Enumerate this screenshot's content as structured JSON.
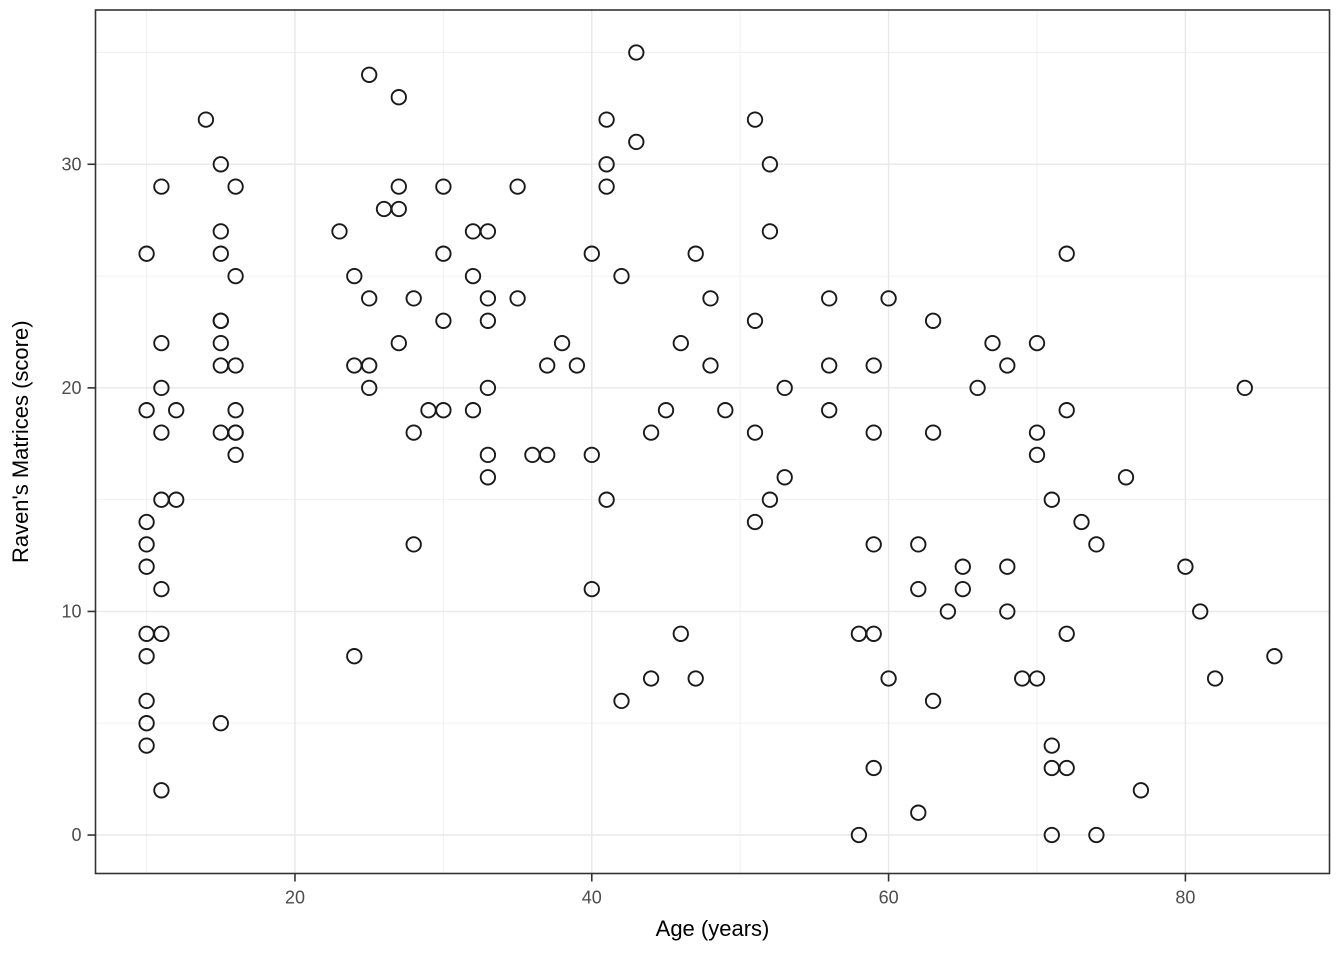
{
  "chart_data": {
    "type": "scatter",
    "title": "",
    "xlabel": "Age (years)",
    "ylabel": "Raven's Matrices (score)",
    "x_ticks": [
      20,
      40,
      60,
      80
    ],
    "y_ticks": [
      0,
      10,
      20,
      30
    ],
    "x_minor_ticks": [
      10,
      30,
      50,
      70
    ],
    "y_minor_ticks": [
      5,
      15,
      25,
      35
    ],
    "xlim": [
      6.56,
      89.71
    ],
    "ylim": [
      -1.72,
      36.9
    ],
    "grid": true,
    "legend": "none",
    "marker": "open-circle",
    "colors": {
      "point_stroke": "#1a1a1a",
      "grid_major": "#e9e9e9",
      "grid_minor": "#f1f1f1",
      "panel_border": "#333333",
      "tick_label": "#4d4d4d",
      "axis_title": "#000000",
      "background": "#ffffff"
    },
    "points": [
      [
        10,
        26
      ],
      [
        10,
        19
      ],
      [
        10,
        14
      ],
      [
        10,
        13
      ],
      [
        10,
        12
      ],
      [
        10,
        9
      ],
      [
        10,
        8
      ],
      [
        10,
        6
      ],
      [
        10,
        5
      ],
      [
        10,
        4
      ],
      [
        11,
        29
      ],
      [
        11,
        22
      ],
      [
        11,
        20
      ],
      [
        11,
        18
      ],
      [
        11,
        15
      ],
      [
        11,
        11
      ],
      [
        11,
        9
      ],
      [
        11,
        2
      ],
      [
        12,
        19
      ],
      [
        12,
        15
      ],
      [
        14,
        32
      ],
      [
        15,
        30
      ],
      [
        15,
        27
      ],
      [
        15,
        26
      ],
      [
        15,
        23
      ],
      [
        15,
        23
      ],
      [
        15,
        22
      ],
      [
        15,
        21
      ],
      [
        15,
        18
      ],
      [
        15,
        5
      ],
      [
        16,
        29
      ],
      [
        16,
        25
      ],
      [
        16,
        21
      ],
      [
        16,
        19
      ],
      [
        16,
        18
      ],
      [
        16,
        18
      ],
      [
        16,
        17
      ],
      [
        23,
        27
      ],
      [
        24,
        25
      ],
      [
        24,
        21
      ],
      [
        24,
        8
      ],
      [
        25,
        34
      ],
      [
        25,
        24
      ],
      [
        25,
        21
      ],
      [
        25,
        20
      ],
      [
        26,
        28
      ],
      [
        27,
        33
      ],
      [
        27,
        29
      ],
      [
        27,
        28
      ],
      [
        27,
        22
      ],
      [
        28,
        24
      ],
      [
        28,
        18
      ],
      [
        28,
        13
      ],
      [
        29,
        19
      ],
      [
        30,
        29
      ],
      [
        30,
        26
      ],
      [
        30,
        23
      ],
      [
        30,
        19
      ],
      [
        32,
        27
      ],
      [
        32,
        25
      ],
      [
        32,
        19
      ],
      [
        33,
        27
      ],
      [
        33,
        24
      ],
      [
        33,
        23
      ],
      [
        33,
        20
      ],
      [
        33,
        17
      ],
      [
        33,
        16
      ],
      [
        35,
        29
      ],
      [
        35,
        24
      ],
      [
        36,
        17
      ],
      [
        37,
        21
      ],
      [
        37,
        17
      ],
      [
        38,
        22
      ],
      [
        39,
        21
      ],
      [
        40,
        26
      ],
      [
        40,
        17
      ],
      [
        40,
        11
      ],
      [
        41,
        32
      ],
      [
        41,
        30
      ],
      [
        41,
        29
      ],
      [
        41,
        15
      ],
      [
        42,
        25
      ],
      [
        42,
        6
      ],
      [
        43,
        35
      ],
      [
        43,
        31
      ],
      [
        44,
        18
      ],
      [
        44,
        7
      ],
      [
        45,
        19
      ],
      [
        46,
        22
      ],
      [
        46,
        9
      ],
      [
        47,
        26
      ],
      [
        47,
        7
      ],
      [
        48,
        24
      ],
      [
        48,
        21
      ],
      [
        49,
        19
      ],
      [
        51,
        32
      ],
      [
        51,
        23
      ],
      [
        51,
        18
      ],
      [
        51,
        14
      ],
      [
        52,
        30
      ],
      [
        52,
        27
      ],
      [
        52,
        15
      ],
      [
        53,
        20
      ],
      [
        53,
        16
      ],
      [
        56,
        24
      ],
      [
        56,
        21
      ],
      [
        56,
        19
      ],
      [
        58,
        9
      ],
      [
        58,
        0
      ],
      [
        59,
        21
      ],
      [
        59,
        18
      ],
      [
        59,
        13
      ],
      [
        59,
        9
      ],
      [
        59,
        3
      ],
      [
        60,
        24
      ],
      [
        60,
        7
      ],
      [
        62,
        13
      ],
      [
        62,
        11
      ],
      [
        62,
        1
      ],
      [
        63,
        23
      ],
      [
        63,
        18
      ],
      [
        63,
        6
      ],
      [
        64,
        10
      ],
      [
        65,
        12
      ],
      [
        65,
        11
      ],
      [
        66,
        20
      ],
      [
        67,
        22
      ],
      [
        68,
        21
      ],
      [
        68,
        12
      ],
      [
        68,
        10
      ],
      [
        69,
        7
      ],
      [
        70,
        22
      ],
      [
        70,
        18
      ],
      [
        70,
        17
      ],
      [
        70,
        7
      ],
      [
        71,
        15
      ],
      [
        71,
        4
      ],
      [
        71,
        3
      ],
      [
        71,
        0
      ],
      [
        72,
        26
      ],
      [
        72,
        19
      ],
      [
        72,
        9
      ],
      [
        72,
        3
      ],
      [
        73,
        14
      ],
      [
        74,
        13
      ],
      [
        74,
        0
      ],
      [
        76,
        16
      ],
      [
        77,
        2
      ],
      [
        80,
        12
      ],
      [
        81,
        10
      ],
      [
        82,
        7
      ],
      [
        84,
        20
      ],
      [
        86,
        8
      ]
    ]
  }
}
